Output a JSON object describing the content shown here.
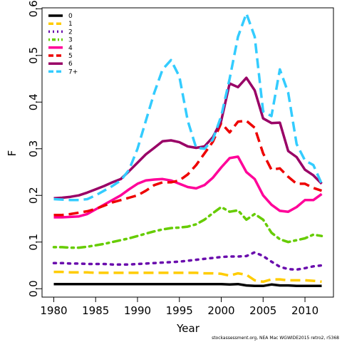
{
  "chart_data": {
    "type": "line",
    "xlabel": "Year",
    "ylabel": "F",
    "xlim": [
      1978.6,
      2013.4
    ],
    "ylim": [
      -0.018,
      0.602
    ],
    "x_ticks": [
      1980,
      1985,
      1990,
      1995,
      2000,
      2005,
      2010
    ],
    "y_ticks": [
      0.0,
      0.1,
      0.2,
      0.3,
      0.4,
      0.5,
      0.6
    ],
    "y_tick_labels": [
      "0.0",
      "0.1",
      "0.2",
      "0.3",
      "0.4",
      "0.5",
      "0.6"
    ],
    "legend_position": "top-left",
    "grid": false,
    "caption": "stockassessment.org, NEA Mac WGWIDE2015 retro2, r5368",
    "x": [
      1980,
      1981,
      1982,
      1983,
      1984,
      1985,
      1986,
      1987,
      1988,
      1989,
      1990,
      1991,
      1992,
      1993,
      1994,
      1995,
      1996,
      1997,
      1998,
      1999,
      2000,
      2001,
      2002,
      2003,
      2004,
      2005,
      2006,
      2007,
      2008,
      2009,
      2010,
      2011,
      2012
    ],
    "series": [
      {
        "name": "0",
        "color": "#000000",
        "dash": "solid",
        "values": [
          0.01,
          0.01,
          0.01,
          0.01,
          0.01,
          0.01,
          0.01,
          0.01,
          0.01,
          0.01,
          0.01,
          0.01,
          0.01,
          0.01,
          0.01,
          0.01,
          0.01,
          0.01,
          0.01,
          0.01,
          0.01,
          0.009,
          0.01,
          0.007,
          0.006,
          0.006,
          0.009,
          0.007,
          0.007,
          0.006,
          0.006,
          0.006,
          0.006
        ]
      },
      {
        "name": "1",
        "color": "#FFCC00",
        "dash": "long",
        "values": [
          0.036,
          0.036,
          0.035,
          0.035,
          0.035,
          0.034,
          0.034,
          0.034,
          0.034,
          0.034,
          0.034,
          0.034,
          0.034,
          0.034,
          0.034,
          0.034,
          0.034,
          0.034,
          0.033,
          0.033,
          0.032,
          0.028,
          0.033,
          0.03,
          0.018,
          0.015,
          0.02,
          0.02,
          0.018,
          0.018,
          0.018,
          0.017,
          0.015
        ]
      },
      {
        "name": "2",
        "color": "#6A0DAD",
        "dash": "dot",
        "values": [
          0.055,
          0.055,
          0.054,
          0.054,
          0.053,
          0.053,
          0.053,
          0.052,
          0.052,
          0.052,
          0.053,
          0.054,
          0.055,
          0.056,
          0.057,
          0.058,
          0.06,
          0.062,
          0.064,
          0.066,
          0.068,
          0.069,
          0.069,
          0.07,
          0.078,
          0.07,
          0.058,
          0.047,
          0.042,
          0.041,
          0.044,
          0.048,
          0.05
        ]
      },
      {
        "name": "3",
        "color": "#66CC00",
        "dash": "dotdash",
        "values": [
          0.089,
          0.089,
          0.088,
          0.088,
          0.09,
          0.093,
          0.096,
          0.1,
          0.104,
          0.108,
          0.113,
          0.118,
          0.123,
          0.127,
          0.13,
          0.131,
          0.133,
          0.138,
          0.148,
          0.162,
          0.175,
          0.165,
          0.168,
          0.148,
          0.16,
          0.148,
          0.12,
          0.106,
          0.1,
          0.104,
          0.108,
          0.116,
          0.113
        ]
      },
      {
        "name": "4",
        "color": "#FF0099",
        "dash": "solid",
        "values": [
          0.153,
          0.153,
          0.154,
          0.155,
          0.16,
          0.17,
          0.18,
          0.19,
          0.2,
          0.213,
          0.225,
          0.232,
          0.234,
          0.235,
          0.232,
          0.225,
          0.218,
          0.215,
          0.222,
          0.238,
          0.26,
          0.28,
          0.283,
          0.25,
          0.235,
          0.2,
          0.18,
          0.167,
          0.165,
          0.175,
          0.19,
          0.19,
          0.203
        ]
      },
      {
        "name": "5",
        "color": "#EE0000",
        "dash": "long",
        "values": [
          0.158,
          0.158,
          0.16,
          0.163,
          0.166,
          0.171,
          0.178,
          0.185,
          0.19,
          0.195,
          0.2,
          0.21,
          0.222,
          0.228,
          0.228,
          0.232,
          0.245,
          0.265,
          0.29,
          0.315,
          0.355,
          0.335,
          0.358,
          0.36,
          0.345,
          0.29,
          0.255,
          0.258,
          0.24,
          0.225,
          0.225,
          0.216,
          0.21
        ]
      },
      {
        "name": "6",
        "color": "#990066",
        "dash": "solid",
        "values": [
          0.194,
          0.195,
          0.197,
          0.2,
          0.206,
          0.213,
          0.22,
          0.228,
          0.235,
          0.252,
          0.27,
          0.288,
          0.302,
          0.316,
          0.318,
          0.314,
          0.305,
          0.302,
          0.305,
          0.325,
          0.36,
          0.44,
          0.432,
          0.452,
          0.425,
          0.365,
          0.355,
          0.356,
          0.295,
          0.282,
          0.255,
          0.243,
          0.225
        ]
      },
      {
        "name": "7+",
        "color": "#33CCFF",
        "dash": "long",
        "values": [
          0.192,
          0.191,
          0.19,
          0.19,
          0.192,
          0.2,
          0.21,
          0.22,
          0.232,
          0.255,
          0.3,
          0.36,
          0.42,
          0.47,
          0.49,
          0.455,
          0.36,
          0.302,
          0.3,
          0.32,
          0.37,
          0.45,
          0.54,
          0.59,
          0.54,
          0.38,
          0.37,
          0.47,
          0.42,
          0.31,
          0.275,
          0.265,
          0.225
        ]
      }
    ]
  }
}
